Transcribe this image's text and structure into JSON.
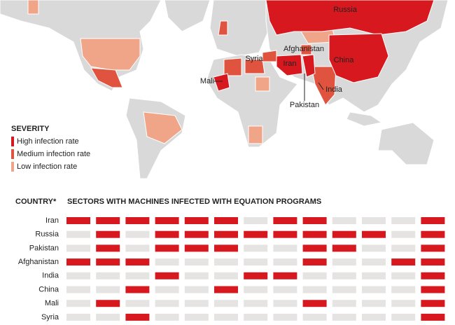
{
  "map": {
    "labels": [
      {
        "name": "Russia",
        "color": "#d7191f"
      },
      {
        "name": "Afghanistan",
        "color": "#e0533f"
      },
      {
        "name": "Syria",
        "color": "#e0533f"
      },
      {
        "name": "Iran",
        "color": "#d7191f"
      },
      {
        "name": "China",
        "color": "#d7191f"
      },
      {
        "name": "Mali",
        "color": "#d7191f"
      },
      {
        "name": "India",
        "color": "#e0533f"
      },
      {
        "name": "Pakistan",
        "color": "#d7191f"
      }
    ]
  },
  "legend": {
    "title": "SEVERITY",
    "items": [
      {
        "label": "High infection rate",
        "color": "#d7191f"
      },
      {
        "label": "Medium infection rate",
        "color": "#e0533f"
      },
      {
        "label": "Low infection rate",
        "color": "#f0a488"
      }
    ]
  },
  "table": {
    "header": [
      "COUNTRY*",
      "SECTORS WITH MACHINES INFECTED WITH EQUATION PROGRAMS"
    ],
    "on_color": "#d7191f",
    "off_color": "#e6e3e3",
    "rows": [
      {
        "country": "Iran",
        "cells": [
          1,
          1,
          1,
          1,
          1,
          1,
          0,
          1,
          1,
          0,
          0,
          0,
          1
        ]
      },
      {
        "country": "Russia",
        "cells": [
          0,
          1,
          0,
          1,
          1,
          1,
          1,
          1,
          1,
          1,
          1,
          0,
          1
        ]
      },
      {
        "country": "Pakistan",
        "cells": [
          0,
          1,
          0,
          1,
          1,
          1,
          0,
          0,
          1,
          1,
          0,
          0,
          1
        ]
      },
      {
        "country": "Afghanistan",
        "cells": [
          1,
          1,
          1,
          0,
          0,
          0,
          0,
          0,
          1,
          0,
          0,
          1,
          1
        ]
      },
      {
        "country": "India",
        "cells": [
          0,
          0,
          0,
          1,
          0,
          0,
          1,
          1,
          0,
          0,
          0,
          0,
          1
        ]
      },
      {
        "country": "China",
        "cells": [
          0,
          0,
          1,
          0,
          0,
          1,
          0,
          0,
          0,
          0,
          0,
          0,
          1
        ]
      },
      {
        "country": "Mali",
        "cells": [
          0,
          1,
          0,
          0,
          0,
          0,
          0,
          0,
          1,
          0,
          0,
          0,
          1
        ]
      },
      {
        "country": "Syria",
        "cells": [
          0,
          0,
          1,
          0,
          0,
          0,
          0,
          0,
          0,
          0,
          0,
          0,
          1
        ]
      }
    ]
  }
}
